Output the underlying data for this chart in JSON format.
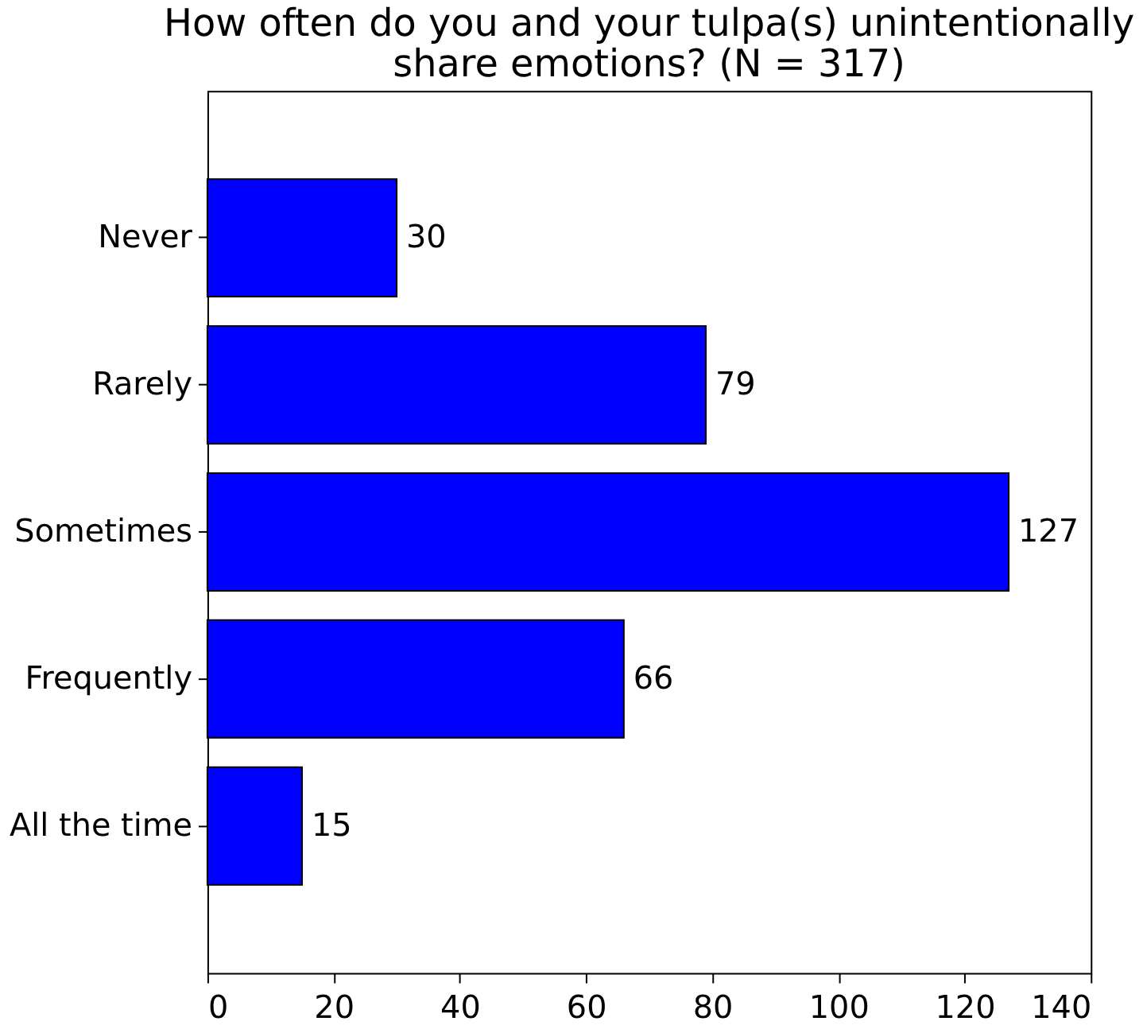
{
  "chart_data": {
    "type": "bar",
    "orientation": "horizontal",
    "title": "How often do you and your tulpa(s) unintentionally\nshare emotions? (N = 317)",
    "categories": [
      "Never",
      "Rarely",
      "Sometimes",
      "Frequently",
      "All the time"
    ],
    "values": [
      30,
      79,
      127,
      66,
      15
    ],
    "color": "#0000ff",
    "xlim": [
      0,
      140
    ],
    "xticks": [
      0,
      20,
      40,
      60,
      80,
      100,
      120,
      140
    ],
    "grid": false,
    "data_labels": true
  }
}
